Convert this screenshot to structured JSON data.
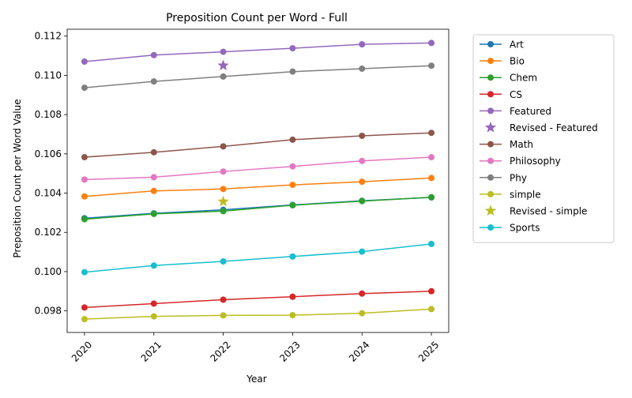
{
  "chart_data": {
    "type": "line",
    "title": "Preposition Count per Word - Full",
    "xlabel": "Year",
    "ylabel": "Preposition Count per Word Value",
    "x": [
      2020,
      2021,
      2022,
      2023,
      2024,
      2025
    ],
    "x_tick_labels": [
      "2020",
      "2021",
      "2022",
      "2023",
      "2024",
      "2025"
    ],
    "ylim": [
      0.0969,
      0.11235
    ],
    "y_ticks": [
      0.098,
      0.1,
      0.102,
      0.104,
      0.106,
      0.108,
      0.11,
      0.112
    ],
    "y_tick_labels": [
      "0.098",
      "0.100",
      "0.102",
      "0.104",
      "0.106",
      "0.108",
      "0.110",
      "0.112"
    ],
    "grid": false,
    "legend_position": "outside-right",
    "series": [
      {
        "name": "Art",
        "kind": "line",
        "color": "#1f77b4",
        "values": [
          0.10272,
          0.10297,
          0.10315,
          0.1034,
          0.10361,
          0.10378
        ]
      },
      {
        "name": "Bio",
        "kind": "line",
        "color": "#ff7f0e",
        "values": [
          0.10383,
          0.10411,
          0.10421,
          0.10442,
          0.10458,
          0.10477
        ]
      },
      {
        "name": "Chem",
        "kind": "line",
        "color": "#2ca02c",
        "values": [
          0.10267,
          0.10294,
          0.10308,
          0.10338,
          0.10359,
          0.10379
        ]
      },
      {
        "name": "CS",
        "kind": "line",
        "color": "#d62728",
        "values": [
          0.09817,
          0.09837,
          0.09857,
          0.09872,
          0.09888,
          0.099
        ]
      },
      {
        "name": "Featured",
        "kind": "line",
        "color": "#9467bd",
        "values": [
          0.1107,
          0.11103,
          0.1112,
          0.11138,
          0.11158,
          0.11165
        ]
      },
      {
        "name": "Revised - Featured",
        "kind": "star",
        "color": "#9467bd",
        "points": [
          {
            "x": 2022,
            "y": 0.1105
          }
        ]
      },
      {
        "name": "Math",
        "kind": "line",
        "color": "#8c564b",
        "values": [
          0.10583,
          0.10608,
          0.10638,
          0.10672,
          0.10692,
          0.10707
        ]
      },
      {
        "name": "Philosophy",
        "kind": "line",
        "color": "#e377c2",
        "values": [
          0.10469,
          0.10481,
          0.1051,
          0.10536,
          0.10564,
          0.10583
        ]
      },
      {
        "name": "Phy",
        "kind": "line",
        "color": "#7f7f7f",
        "values": [
          0.10937,
          0.10969,
          0.10994,
          0.11019,
          0.11034,
          0.11049
        ]
      },
      {
        "name": "simple",
        "kind": "line",
        "color": "#bcbd22",
        "values": [
          0.09758,
          0.09772,
          0.09777,
          0.09778,
          0.09788,
          0.09809
        ]
      },
      {
        "name": "Revised - simple",
        "kind": "star",
        "color": "#bcbd22",
        "points": [
          {
            "x": 2022,
            "y": 0.10357
          }
        ]
      },
      {
        "name": "Sports",
        "kind": "line",
        "color": "#17becf",
        "values": [
          0.09997,
          0.10031,
          0.10052,
          0.10077,
          0.10102,
          0.10141
        ]
      }
    ]
  }
}
